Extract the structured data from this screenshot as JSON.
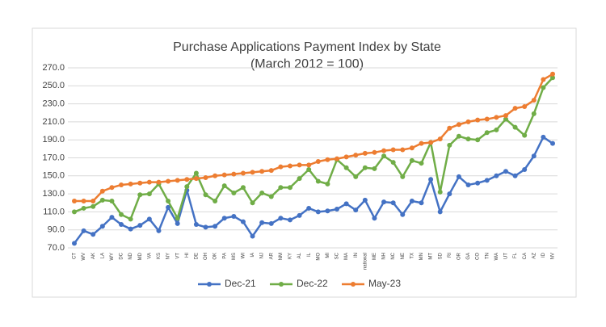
{
  "chart_data": {
    "type": "line",
    "title": "Purchase Applications Payment Index by State",
    "subtitle": "(March 2012 = 100)",
    "categories": [
      "CT",
      "WV",
      "AK",
      "LA",
      "WY",
      "DC",
      "ND",
      "MD",
      "VA",
      "KS",
      "NY",
      "VT",
      "HI",
      "DE",
      "OH",
      "OK",
      "PA",
      "MS",
      "WI",
      "IA",
      "NJ",
      "AR",
      "NM",
      "KY",
      "AL",
      "IL",
      "MO",
      "MI",
      "SC",
      "MA",
      "IN",
      "national",
      "ME",
      "NH",
      "NC",
      "NE",
      "TX",
      "MN",
      "MT",
      "SD",
      "RI",
      "OR",
      "GA",
      "CO",
      "TN",
      "WA",
      "UT",
      "FL",
      "CA",
      "AZ",
      "ID",
      "NV"
    ],
    "series": [
      {
        "name": "Dec-21",
        "color": "#4472c4",
        "values": [
          75,
          89,
          85,
          94,
          104,
          96,
          91,
          95,
          102,
          89,
          115,
          97,
          134,
          96,
          93,
          94,
          103,
          105,
          99,
          83,
          98,
          97,
          103,
          101,
          106,
          114,
          110,
          111,
          113,
          119,
          112,
          123,
          103,
          121,
          120,
          107,
          122,
          120,
          146,
          110,
          130,
          149,
          140,
          142,
          145,
          150,
          155,
          150,
          157,
          172,
          193,
          186
        ]
      },
      {
        "name": "Dec-22",
        "color": "#70ad47",
        "values": [
          110,
          114,
          116,
          123,
          122,
          107,
          102,
          129,
          130,
          141,
          122,
          103,
          138,
          153,
          129,
          122,
          139,
          131,
          137,
          120,
          131,
          127,
          137,
          137,
          147,
          157,
          144,
          141,
          168,
          159,
          149,
          159,
          158,
          172,
          165,
          149,
          167,
          164,
          187,
          132,
          184,
          194,
          191,
          190,
          198,
          201,
          213,
          204,
          195,
          219,
          248,
          259
        ]
      },
      {
        "name": "May-23",
        "color": "#ed7d31",
        "values": [
          122,
          122,
          122,
          133,
          137,
          140,
          141,
          142,
          143,
          143,
          144,
          145,
          146,
          147,
          148,
          150,
          151,
          152,
          153,
          154,
          155,
          156,
          160,
          161,
          162,
          162,
          166,
          168,
          169,
          171,
          173,
          175,
          176,
          178,
          179,
          179,
          181,
          186,
          187,
          191,
          203,
          207,
          210,
          212,
          213,
          215,
          217,
          225,
          227,
          234,
          257,
          263
        ]
      }
    ],
    "ylim": [
      70,
      270
    ],
    "yticks": [
      {
        "value": 70,
        "label": "70.0"
      },
      {
        "value": 90,
        "label": "90.0"
      },
      {
        "value": 110,
        "label": "110.0"
      },
      {
        "value": 130,
        "label": "130.0"
      },
      {
        "value": 150,
        "label": "150.0"
      },
      {
        "value": 170,
        "label": "170.0"
      },
      {
        "value": 190,
        "label": "190.0"
      },
      {
        "value": 210,
        "label": "210.0"
      },
      {
        "value": 230,
        "label": "230.0"
      },
      {
        "value": 250,
        "label": "250.0"
      },
      {
        "value": 270,
        "label": "270.0"
      }
    ],
    "grid": true,
    "legend": "bottom"
  }
}
